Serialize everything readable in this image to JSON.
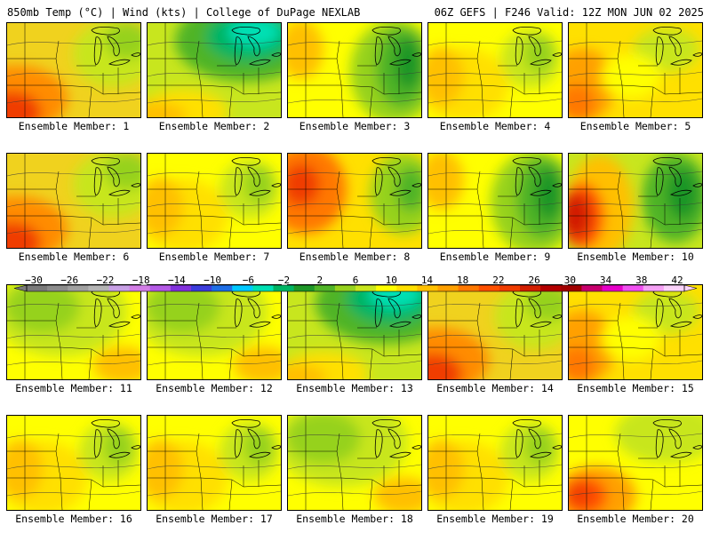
{
  "header": {
    "left": "850mb Temp (°C) | Wind (kts) | College of DuPage NEXLAB",
    "right": "06Z GEFS | F246 Valid: 12Z MON JUN 02 2025"
  },
  "panel_prefix": "Ensemble Member: ",
  "members": [
    {
      "label": "Ensemble Member: 1",
      "regime": "warm-west"
    },
    {
      "label": "Ensemble Member: 2",
      "regime": "cool-north"
    },
    {
      "label": "Ensemble Member: 3",
      "regime": "cool-east"
    },
    {
      "label": "Ensemble Member: 4",
      "regime": "mild"
    },
    {
      "label": "Ensemble Member: 5",
      "regime": "warm-mild"
    },
    {
      "label": "Ensemble Member: 6",
      "regime": "warm-west"
    },
    {
      "label": "Ensemble Member: 7",
      "regime": "mild"
    },
    {
      "label": "Ensemble Member: 8",
      "regime": "warm-west-cool-east"
    },
    {
      "label": "Ensemble Member: 9",
      "regime": "cool-east"
    },
    {
      "label": "Ensemble Member: 10",
      "regime": "hot-west-cool-east"
    },
    {
      "label": "Ensemble Member: 11",
      "regime": "cool-mild"
    },
    {
      "label": "Ensemble Member: 12",
      "regime": "cool-mild"
    },
    {
      "label": "Ensemble Member: 13",
      "regime": "cool-north"
    },
    {
      "label": "Ensemble Member: 14",
      "regime": "warm-west"
    },
    {
      "label": "Ensemble Member: 15",
      "regime": "warm-mild"
    },
    {
      "label": "Ensemble Member: 16",
      "regime": "mild"
    },
    {
      "label": "Ensemble Member: 17",
      "regime": "mild"
    },
    {
      "label": "Ensemble Member: 18",
      "regime": "cool-mild"
    },
    {
      "label": "Ensemble Member: 19",
      "regime": "mild"
    },
    {
      "label": "Ensemble Member: 20",
      "regime": "hot-southwest"
    }
  ],
  "colorbar": {
    "labels": [
      "−30",
      "−26",
      "−22",
      "−18",
      "−14",
      "−10",
      "−6",
      "−2",
      "2",
      "6",
      "10",
      "14",
      "18",
      "22",
      "26",
      "30",
      "34",
      "38",
      "42"
    ],
    "colors": [
      "#7a7a7a",
      "#8c8c8c",
      "#a0a0a0",
      "#b4b4b4",
      "#c8a0e6",
      "#d27de6",
      "#b45ae6",
      "#8232dc",
      "#3c3cdc",
      "#1e6ee6",
      "#00c8ff",
      "#00e0b4",
      "#00b464",
      "#1e9628",
      "#50b428",
      "#96d21e",
      "#c8e61e",
      "#ffff00",
      "#ffe000",
      "#ffc000",
      "#ffa000",
      "#ff7800",
      "#ff5000",
      "#f03c00",
      "#d21e00",
      "#b40000",
      "#a00000",
      "#c8006e",
      "#e600c8",
      "#f050f0",
      "#f5a0f5",
      "#fad2fa"
    ]
  }
}
